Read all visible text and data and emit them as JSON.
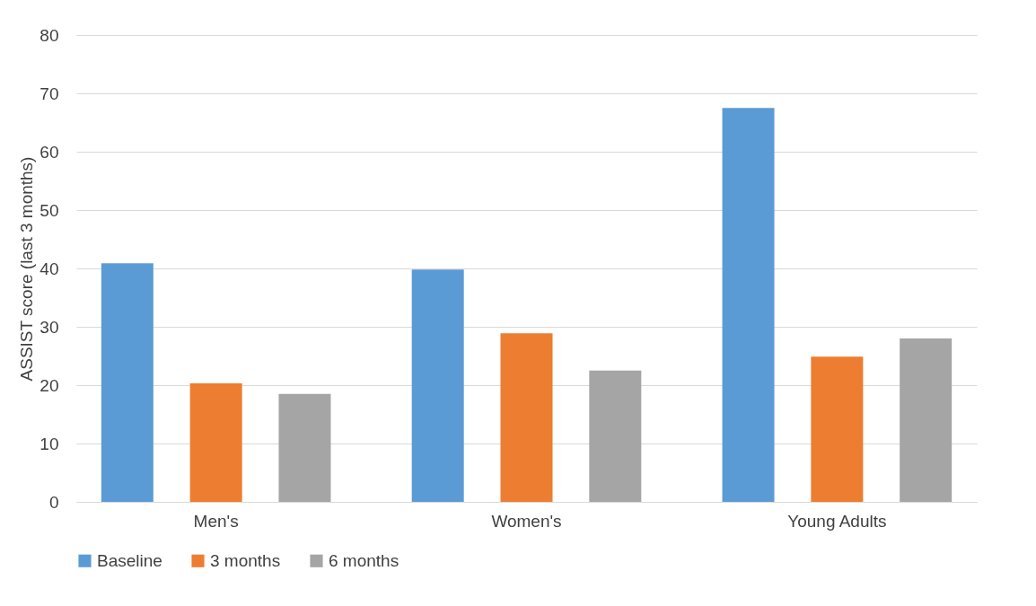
{
  "chart_data": {
    "type": "bar",
    "ylabel": "ASSIST score (last 3 months)",
    "categories": [
      "Men's",
      "Women's",
      "Young Adults"
    ],
    "series": [
      {
        "name": "Baseline",
        "color": "#5b9bd5",
        "values": [
          40.9,
          39.8,
          67.5
        ]
      },
      {
        "name": "3 months",
        "color": "#ed7d31",
        "values": [
          20.3,
          28.9,
          24.9
        ]
      },
      {
        "name": "6 months",
        "color": "#a5a5a5",
        "values": [
          18.5,
          22.5,
          28.0
        ]
      }
    ],
    "ylim": [
      0,
      80
    ],
    "yticks": [
      0,
      10,
      20,
      30,
      40,
      50,
      60,
      70,
      80
    ],
    "grid": "y",
    "legend": "bottom"
  }
}
